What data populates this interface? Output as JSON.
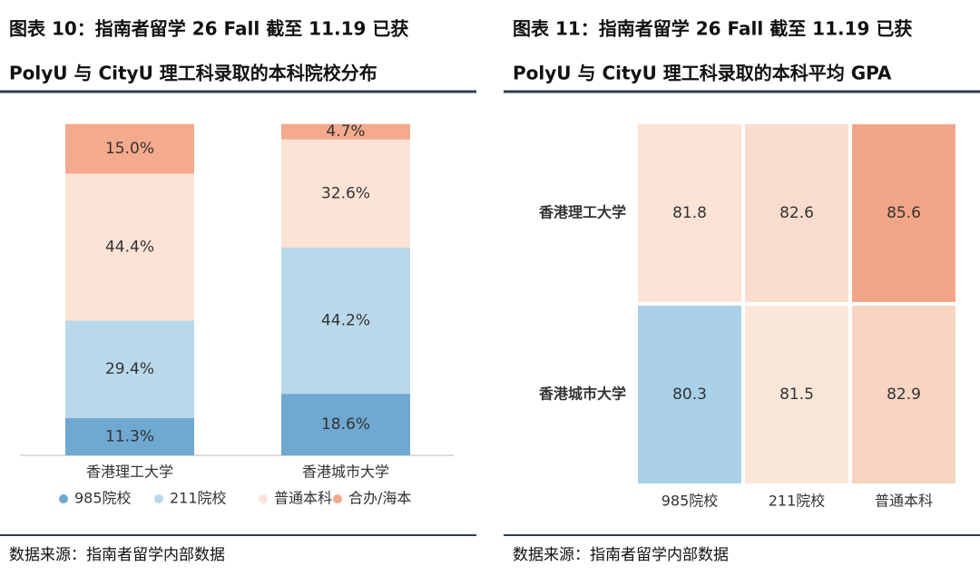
{
  "chart_data": [
    {
      "type": "stacked_bar",
      "title": "图表 10：指南者留学 26 Fall 截至 11.19 已获",
      "subtitle": "PolyU 与 CityU 理工科录取的本科院校分布",
      "source": "数据来源：指南者留学内部数据",
      "categories": [
        "香港理工大学",
        "香港城市大学"
      ],
      "ylim": [
        0,
        100
      ],
      "series": [
        {
          "name": "985院校",
          "color": "#6fa8d0",
          "values": [
            11.3,
            18.6
          ],
          "value_labels": [
            "11.3%",
            "18.6%"
          ]
        },
        {
          "name": "211院校",
          "color": "#b9d8ea",
          "values": [
            29.4,
            44.2
          ],
          "value_labels": [
            "29.4%",
            "44.2%"
          ]
        },
        {
          "name": "普通本科",
          "color": "#fbe3d6",
          "values": [
            44.4,
            32.6
          ],
          "value_labels": [
            "44.4%",
            "32.6%"
          ]
        },
        {
          "name": "合办/海本",
          "color": "#f4aa8c",
          "values": [
            15.0,
            4.7
          ],
          "value_labels": [
            "15.0%",
            "4.7%"
          ]
        }
      ]
    },
    {
      "type": "heatmap",
      "title": "图表 11：指南者留学 26 Fall 截至 11.19 已获",
      "subtitle": "PolyU 与 CityU 理工科录取的本科平均 GPA",
      "source": "数据来源：指南者留学内部数据",
      "x": [
        "985院校",
        "211院校",
        "普通本科"
      ],
      "y": [
        "香港理工大学",
        "香港城市大学"
      ],
      "values": [
        [
          81.8,
          82.6,
          85.6
        ],
        [
          80.3,
          81.5,
          82.9
        ]
      ],
      "cell_colors": [
        [
          "#fbe3d6",
          "#f9dccd",
          "#f3a687"
        ],
        [
          "#a9d0e7",
          "#fbe6da",
          "#f8d4c3"
        ]
      ]
    }
  ]
}
